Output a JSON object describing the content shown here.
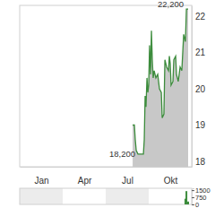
{
  "chart_data": [
    {
      "type": "area",
      "x": [
        7.88,
        8.0,
        8.06,
        8.13,
        8.25,
        8.63,
        8.69,
        8.75,
        8.81,
        8.88,
        8.94,
        9.0,
        9.06,
        9.13,
        9.19,
        9.25,
        9.31,
        9.38,
        9.5,
        9.63,
        9.75,
        9.88,
        9.94,
        10.06,
        10.13,
        10.25,
        10.38,
        10.44,
        10.5,
        10.56,
        10.69,
        10.75,
        10.88,
        10.94,
        11.06,
        11.19,
        11.31,
        11.44,
        11.56,
        11.63,
        11.75
      ],
      "series": [
        {
          "color": "#3c8c3c",
          "values": [
            19.0,
            19.0,
            18.6,
            18.3,
            18.2,
            18.2,
            18.6,
            19.8,
            19.5,
            20.3,
            19.9,
            20.1,
            21.2,
            20.4,
            21.6,
            20.8,
            20.3,
            20.5,
            20.3,
            20.4,
            20.0,
            19.9,
            19.2,
            19.3,
            20.8,
            20.6,
            20.5,
            20.9,
            20.7,
            20.1,
            20.2,
            20.8,
            20.9,
            20.4,
            20.2,
            20.6,
            20.5,
            21.5,
            21.3,
            22.2,
            22.2
          ]
        }
      ],
      "xlim": [
        0,
        12
      ],
      "xticks": [
        {
          "value": 1.5,
          "label": "Jan"
        },
        {
          "value": 4.5,
          "label": "Apr"
        },
        {
          "value": 7.5,
          "label": "Jul"
        },
        {
          "value": 10.5,
          "label": "Okt"
        }
      ],
      "ylim": [
        17.85,
        22.3
      ],
      "yticks": [
        18,
        19,
        20,
        21,
        22
      ],
      "annotations": [
        {
          "text": "22,200",
          "x": 11.63,
          "y": 22.2
        },
        {
          "text": "18,200",
          "x": 8.25,
          "y": 18.2
        }
      ]
    },
    {
      "type": "bar",
      "x": [
        11.56,
        11.63,
        11.75
      ],
      "values": [
        600,
        1400,
        300
      ],
      "color": "#3c8c3c",
      "xlim": [
        0,
        12
      ],
      "ylim": [
        0,
        1700
      ],
      "yticks": [
        0,
        750,
        1500
      ],
      "tick_labels": "y"
    }
  ]
}
